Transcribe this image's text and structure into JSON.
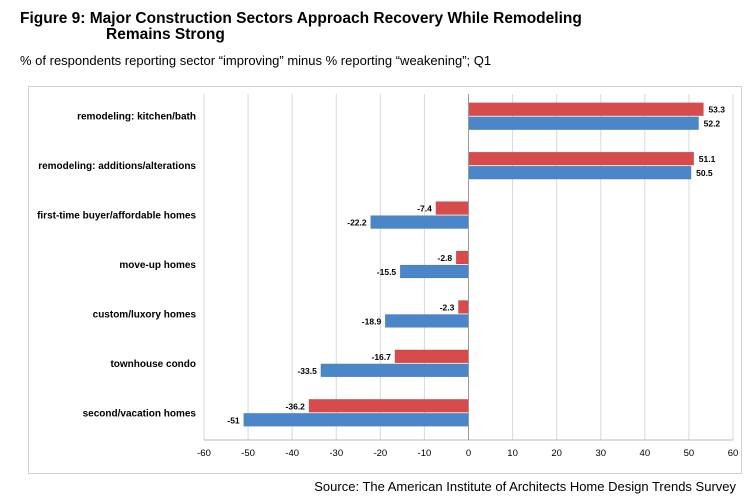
{
  "header": {
    "title_line1": "Figure 9: Major Construction Sectors Approach Recovery While Remodeling",
    "title_line2": "Remains Strong",
    "subtitle": "% of respondents reporting sector “improving” minus % reporting “weakening”; Q1",
    "source": "Source: The American Institute of Architects Home Design Trends Survey"
  },
  "chart_data": {
    "type": "bar",
    "orientation": "horizontal",
    "categories": [
      "remodeling: kitchen/bath",
      "remodeling: additions/alterations",
      "first-time buyer/affordable homes",
      "move-up homes",
      "custom/luxory homes",
      "townhouse condo",
      "second/vacation homes"
    ],
    "series": [
      {
        "color": "#d84b4b",
        "values": [
          53.3,
          51.1,
          -7.4,
          -2.8,
          -2.3,
          -16.7,
          -36.2
        ]
      },
      {
        "color": "#4a86c8",
        "values": [
          52.2,
          50.5,
          -22.2,
          -15.5,
          -18.9,
          -33.5,
          -51
        ]
      }
    ],
    "xlim": [
      -60,
      60
    ],
    "xticks": [
      -60,
      -50,
      -40,
      -30,
      -20,
      -10,
      0,
      10,
      20,
      30,
      40,
      50,
      60
    ],
    "grid": true,
    "legend": "none"
  }
}
